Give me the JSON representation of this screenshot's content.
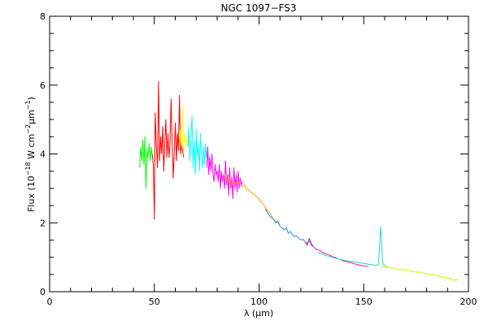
{
  "chart_data": {
    "type": "line",
    "title": "NGC 1097−FS3",
    "xlabel": "λ (μm)",
    "ylabel_parts": {
      "a": "Flux (10",
      "b": "−18",
      "c": " W cm",
      "d": "−2",
      "e": "μm",
      "f": "−1",
      "g": ")"
    },
    "xlim": [
      0,
      200
    ],
    "ylim": [
      0,
      8
    ],
    "x_ticks": [
      {
        "value": 0,
        "label": "0"
      },
      {
        "value": 50,
        "label": "50"
      },
      {
        "value": 100,
        "label": "100"
      },
      {
        "value": 150,
        "label": "150"
      },
      {
        "value": 200,
        "label": "200"
      }
    ],
    "y_ticks": [
      {
        "value": 0,
        "label": "0"
      },
      {
        "value": 2,
        "label": "2"
      },
      {
        "value": 4,
        "label": "4"
      },
      {
        "value": 6,
        "label": "6"
      },
      {
        "value": 8,
        "label": "8"
      }
    ],
    "x_minor_step": 10,
    "y_minor_step": 0.5,
    "grid": false,
    "series": [
      {
        "color": "#00ff00",
        "points": [
          [
            43.0,
            3.6
          ],
          [
            43.5,
            4.2
          ],
          [
            44.0,
            3.8
          ],
          [
            44.5,
            4.4
          ],
          [
            45.0,
            3.7
          ],
          [
            45.5,
            4.5
          ],
          [
            46.0,
            3.0
          ],
          [
            46.5,
            4.1
          ],
          [
            47.0,
            3.9
          ],
          [
            47.5,
            4.3
          ],
          [
            48.0,
            3.8
          ],
          [
            48.5,
            4.2
          ],
          [
            49.0,
            3.9
          ]
        ]
      },
      {
        "color": "#ff0000",
        "points": [
          [
            49.0,
            4.0
          ],
          [
            49.5,
            3.7
          ],
          [
            50.0,
            2.1
          ],
          [
            50.4,
            5.2
          ],
          [
            51.0,
            4.2
          ],
          [
            51.5,
            3.6
          ],
          [
            52.0,
            6.1
          ],
          [
            52.5,
            3.8
          ],
          [
            53.0,
            4.5
          ],
          [
            53.5,
            4.0
          ],
          [
            54.0,
            4.8
          ],
          [
            54.5,
            3.5
          ],
          [
            55.0,
            4.3
          ],
          [
            55.5,
            5.0
          ],
          [
            56.0,
            3.9
          ],
          [
            56.5,
            4.6
          ],
          [
            57.0,
            3.9
          ],
          [
            57.5,
            4.3
          ],
          [
            58.0,
            5.6
          ],
          [
            58.5,
            4.4
          ],
          [
            59.0,
            3.3
          ],
          [
            59.5,
            4.0
          ],
          [
            60.0,
            4.9
          ],
          [
            60.5,
            3.8
          ],
          [
            61.0,
            4.6
          ],
          [
            61.5,
            4.1
          ],
          [
            62.0,
            5.7
          ],
          [
            62.5,
            4.0
          ],
          [
            63.0,
            4.3
          ],
          [
            63.5,
            4.1
          ],
          [
            64.0,
            3.9
          ]
        ]
      },
      {
        "color": "#ffff00",
        "points": [
          [
            62.0,
            4.3
          ],
          [
            62.5,
            4.7
          ],
          [
            63.0,
            4.2
          ],
          [
            63.5,
            5.4
          ],
          [
            64.0,
            4.1
          ],
          [
            64.5,
            4.6
          ],
          [
            65.0,
            4.3
          ],
          [
            65.5,
            4.4
          ],
          [
            66.0,
            4.2
          ],
          [
            66.5,
            4.4
          ],
          [
            67.0,
            4.3
          ]
        ]
      },
      {
        "color": "#00ffff",
        "points": [
          [
            66.0,
            4.2
          ],
          [
            66.5,
            4.8
          ],
          [
            67.0,
            3.8
          ],
          [
            67.5,
            4.5
          ],
          [
            68.0,
            5.1
          ],
          [
            68.5,
            3.6
          ],
          [
            69.0,
            4.4
          ],
          [
            69.5,
            3.4
          ],
          [
            70.0,
            4.7
          ],
          [
            70.5,
            3.9
          ],
          [
            71.0,
            4.3
          ],
          [
            71.5,
            3.5
          ],
          [
            72.0,
            4.6
          ],
          [
            72.5,
            4.0
          ],
          [
            73.0,
            3.6
          ],
          [
            73.5,
            4.2
          ],
          [
            74.0,
            3.7
          ],
          [
            74.5,
            4.3
          ],
          [
            75.0,
            3.9
          ],
          [
            75.5,
            4.1
          ],
          [
            76.0,
            3.8
          ]
        ]
      },
      {
        "color": "#ff00ff",
        "points": [
          [
            75.0,
            3.6
          ],
          [
            75.5,
            4.2
          ],
          [
            76.0,
            3.4
          ],
          [
            76.5,
            3.9
          ],
          [
            77.0,
            3.5
          ],
          [
            77.5,
            4.0
          ],
          [
            78.0,
            3.4
          ],
          [
            78.5,
            3.2
          ],
          [
            79.0,
            3.7
          ],
          [
            79.5,
            3.4
          ],
          [
            80.0,
            3.5
          ],
          [
            80.5,
            3.2
          ],
          [
            81.0,
            3.7
          ],
          [
            81.5,
            3.0
          ],
          [
            82.0,
            3.5
          ],
          [
            82.5,
            3.2
          ],
          [
            83.0,
            3.4
          ],
          [
            83.5,
            3.0
          ],
          [
            84.0,
            3.8
          ],
          [
            84.5,
            3.1
          ],
          [
            85.0,
            3.4
          ],
          [
            85.5,
            2.8
          ],
          [
            86.0,
            3.6
          ],
          [
            86.5,
            3.0
          ],
          [
            87.0,
            3.3
          ],
          [
            87.5,
            2.7
          ],
          [
            88.0,
            3.6
          ],
          [
            88.5,
            3.0
          ],
          [
            89.0,
            3.4
          ],
          [
            89.5,
            2.9
          ],
          [
            90.0,
            3.5
          ],
          [
            90.5,
            3.0
          ],
          [
            91.0,
            3.3
          ],
          [
            91.5,
            3.1
          ],
          [
            92.0,
            3.2
          ]
        ]
      },
      {
        "color": "#ff9900",
        "points": [
          [
            83.0,
            3.3
          ],
          [
            84.0,
            3.4
          ],
          [
            85.0,
            3.2
          ],
          [
            86.0,
            3.3
          ],
          [
            87.0,
            3.1
          ],
          [
            88.0,
            3.2
          ],
          [
            89.0,
            3.15
          ],
          [
            90.0,
            3.2
          ],
          [
            91.0,
            3.1
          ],
          [
            92.0,
            3.05
          ],
          [
            93.0,
            3.1
          ],
          [
            94.0,
            3.0
          ],
          [
            95.0,
            2.95
          ],
          [
            96.0,
            2.9
          ],
          [
            97.0,
            2.85
          ],
          [
            98.0,
            2.8
          ],
          [
            99.0,
            2.75
          ],
          [
            100.0,
            2.7
          ],
          [
            101.0,
            2.6
          ],
          [
            102.0,
            2.55
          ],
          [
            103.0,
            2.45
          ],
          [
            104.0,
            2.35
          ],
          [
            105.0,
            2.3
          ],
          [
            106.0,
            2.2
          ],
          [
            107.0,
            2.1
          ],
          [
            108.0,
            2.05
          ],
          [
            109.0,
            2.0
          ],
          [
            110.0,
            1.95
          ]
        ]
      },
      {
        "color": "#1e90ff",
        "points": [
          [
            103.0,
            2.4
          ],
          [
            104.0,
            2.3
          ],
          [
            105.0,
            2.2
          ],
          [
            106.0,
            2.15
          ],
          [
            107.0,
            2.1
          ],
          [
            108.0,
            2.0
          ],
          [
            109.0,
            2.05
          ],
          [
            110.0,
            1.9
          ],
          [
            111.0,
            1.85
          ],
          [
            112.0,
            1.8
          ],
          [
            113.0,
            1.85
          ],
          [
            114.0,
            1.7
          ],
          [
            115.0,
            1.75
          ],
          [
            116.0,
            1.65
          ],
          [
            117.0,
            1.6
          ],
          [
            118.0,
            1.62
          ],
          [
            119.0,
            1.55
          ],
          [
            120.0,
            1.5
          ],
          [
            121.0,
            1.52
          ],
          [
            122.0,
            1.45
          ],
          [
            123.0,
            1.4
          ],
          [
            124.0,
            1.48
          ],
          [
            125.0,
            1.35
          ],
          [
            126.0,
            1.3
          ]
        ]
      },
      {
        "color": "#e91e8c",
        "points": [
          [
            122.0,
            1.45
          ],
          [
            123.0,
            1.35
          ],
          [
            124.0,
            1.55
          ],
          [
            125.0,
            1.4
          ],
          [
            126.0,
            1.3
          ],
          [
            127.0,
            1.25
          ],
          [
            128.0,
            1.22
          ],
          [
            129.0,
            1.2
          ],
          [
            130.0,
            1.15
          ],
          [
            131.0,
            1.12
          ],
          [
            132.0,
            1.1
          ],
          [
            133.0,
            1.08
          ],
          [
            134.0,
            1.05
          ],
          [
            135.0,
            1.02
          ],
          [
            136.0,
            1.0
          ],
          [
            137.0,
            0.98
          ],
          [
            138.0,
            0.95
          ],
          [
            139.0,
            0.93
          ],
          [
            140.0,
            0.9
          ],
          [
            141.0,
            0.88
          ],
          [
            142.0,
            0.87
          ],
          [
            143.0,
            0.85
          ],
          [
            144.0,
            0.84
          ],
          [
            145.0,
            0.82
          ],
          [
            146.0,
            0.8
          ],
          [
            147.0,
            0.79
          ],
          [
            148.0,
            0.77
          ],
          [
            149.0,
            0.76
          ],
          [
            150.0,
            0.75
          ],
          [
            151.0,
            0.74
          ],
          [
            152.0,
            0.73
          ]
        ]
      },
      {
        "color": "#20d8c8",
        "points": [
          [
            128.0,
            1.15
          ],
          [
            130.0,
            1.1
          ],
          [
            132.0,
            1.05
          ],
          [
            134.0,
            1.02
          ],
          [
            136.0,
            0.98
          ],
          [
            138.0,
            0.95
          ],
          [
            140.0,
            0.92
          ],
          [
            142.0,
            0.9
          ],
          [
            144.0,
            0.88
          ],
          [
            146.0,
            0.86
          ],
          [
            148.0,
            0.84
          ],
          [
            150.0,
            0.82
          ],
          [
            152.0,
            0.8
          ],
          [
            154.0,
            0.78
          ],
          [
            156.0,
            0.76
          ],
          [
            157.0,
            0.8
          ],
          [
            157.5,
            1.3
          ],
          [
            158.0,
            1.9
          ],
          [
            158.5,
            1.5
          ],
          [
            159.0,
            0.85
          ],
          [
            160.0,
            0.74
          ],
          [
            161.0,
            0.72
          ],
          [
            162.0,
            0.7
          ]
        ]
      },
      {
        "color": "#c8ff00",
        "points": [
          [
            158.0,
            0.75
          ],
          [
            159.0,
            0.72
          ],
          [
            160.0,
            0.73
          ],
          [
            161.0,
            0.7
          ],
          [
            162.0,
            0.71
          ],
          [
            163.0,
            0.68
          ],
          [
            164.0,
            0.7
          ],
          [
            165.0,
            0.66
          ],
          [
            166.0,
            0.67
          ],
          [
            167.0,
            0.64
          ],
          [
            168.0,
            0.66
          ],
          [
            169.0,
            0.62
          ],
          [
            170.0,
            0.63
          ],
          [
            171.0,
            0.6
          ],
          [
            172.0,
            0.62
          ],
          [
            173.0,
            0.58
          ],
          [
            174.0,
            0.59
          ],
          [
            175.0,
            0.56
          ],
          [
            176.0,
            0.58
          ],
          [
            177.0,
            0.54
          ],
          [
            178.0,
            0.55
          ],
          [
            179.0,
            0.52
          ],
          [
            180.0,
            0.54
          ],
          [
            181.0,
            0.5
          ],
          [
            182.0,
            0.51
          ],
          [
            183.0,
            0.48
          ],
          [
            184.0,
            0.5
          ],
          [
            185.0,
            0.45
          ],
          [
            186.0,
            0.47
          ],
          [
            187.0,
            0.42
          ],
          [
            188.0,
            0.44
          ],
          [
            189.0,
            0.38
          ],
          [
            190.0,
            0.42
          ],
          [
            191.0,
            0.35
          ],
          [
            192.0,
            0.4
          ],
          [
            193.0,
            0.3
          ],
          [
            194.0,
            0.36
          ],
          [
            195.0,
            0.33
          ]
        ]
      }
    ]
  }
}
